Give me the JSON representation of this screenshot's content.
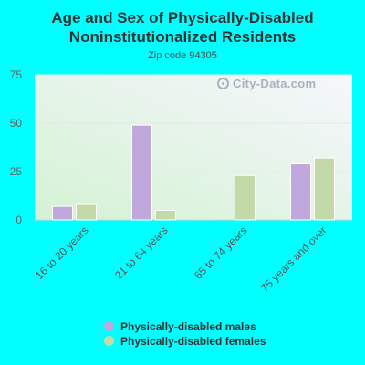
{
  "chart_data": {
    "type": "bar",
    "title": "Age and Sex of Physically-Disabled Noninstitutionalized Residents",
    "subtitle": "Zip code 94305",
    "categories": [
      "16 to 20 years",
      "21 to 64 years",
      "65 to 74 years",
      "75 years and over"
    ],
    "series": [
      {
        "name": "Physically-disabled males",
        "color": "#c0a8dc",
        "values": [
          7,
          49,
          0,
          29
        ]
      },
      {
        "name": "Physically-disabled females",
        "color": "#c4d9a8",
        "values": [
          8,
          5,
          23,
          32
        ]
      }
    ],
    "yticks": [
      0,
      25,
      50,
      75
    ],
    "ylim": [
      0,
      75
    ],
    "xlabel": "",
    "ylabel": "",
    "grid": true,
    "legend_position": "bottom"
  },
  "watermark": "City-Data.com"
}
